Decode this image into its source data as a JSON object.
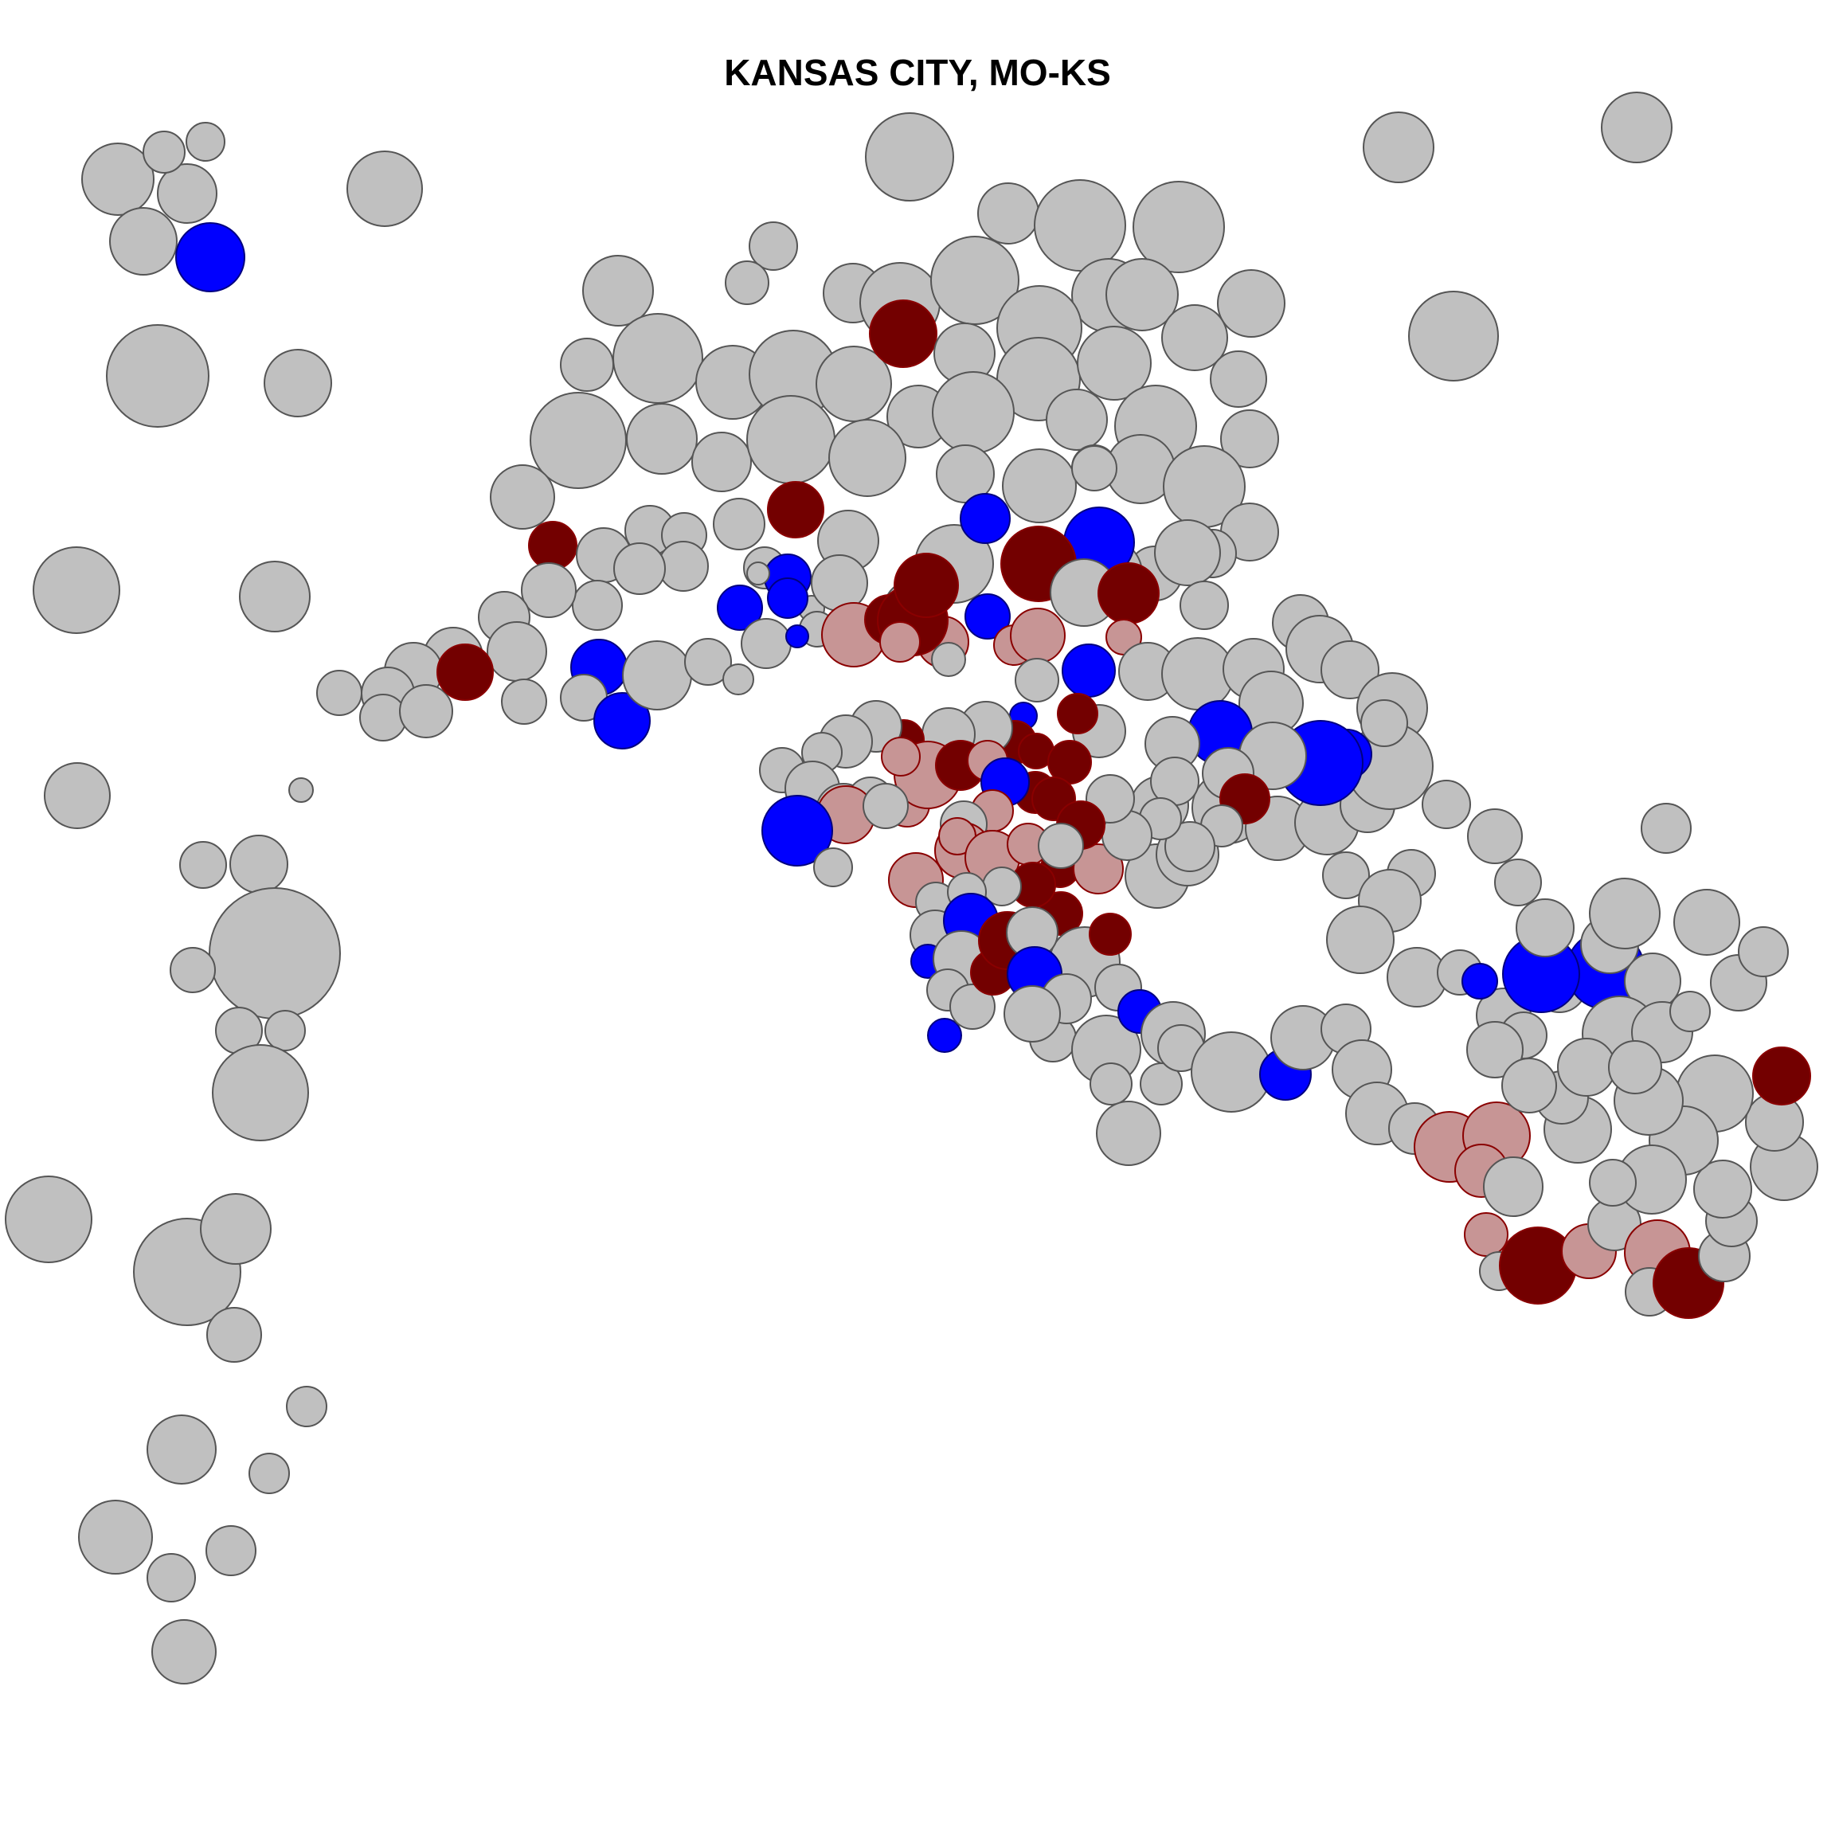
{
  "title": "KANSAS CITY, MO-KS",
  "legend": [],
  "colors": {
    "neutral": "#c0c0c0",
    "dark_red": "#730000",
    "light_red": "#c79595",
    "blue": "#0000ff",
    "outline_neutral": "#555555",
    "outline_red": "#8a0000",
    "outline_blue": "#000080"
  }
}
